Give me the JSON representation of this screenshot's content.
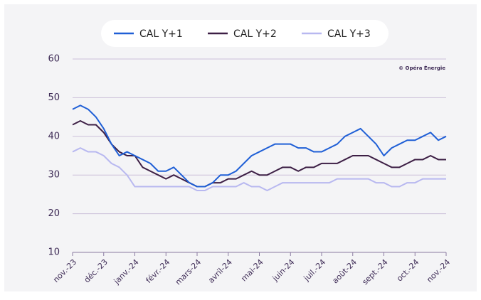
{
  "chart_data": {
    "type": "line",
    "annotation": "© Opéra Énergie",
    "x": [
      0,
      0.25,
      0.5,
      0.75,
      1,
      1.25,
      1.5,
      1.75,
      2,
      2.25,
      2.5,
      2.75,
      3,
      3.25,
      3.5,
      3.75,
      4,
      4.25,
      4.5,
      4.75,
      5,
      5.25,
      5.5,
      5.75,
      6,
      6.25,
      6.5,
      6.75,
      7,
      7.25,
      7.5,
      7.75,
      8,
      8.25,
      8.5,
      8.75,
      9,
      9.25,
      9.5,
      9.75,
      10,
      10.25,
      10.5,
      10.75,
      11,
      11.25,
      11.5,
      11.75,
      12
    ],
    "xlim": [
      0,
      12
    ],
    "xticks": [
      {
        "value": 0,
        "label": "nov.-23"
      },
      {
        "value": 1,
        "label": "déc.-23"
      },
      {
        "value": 2,
        "label": "janv.-24"
      },
      {
        "value": 3,
        "label": "févr.-24"
      },
      {
        "value": 4,
        "label": "mars-24"
      },
      {
        "value": 5,
        "label": "avril-24"
      },
      {
        "value": 6,
        "label": "mai-24"
      },
      {
        "value": 7,
        "label": "juin-24"
      },
      {
        "value": 8,
        "label": "juil.-24"
      },
      {
        "value": 9,
        "label": "août-24"
      },
      {
        "value": 10,
        "label": "sept.-24"
      },
      {
        "value": 11,
        "label": "oct.-24"
      },
      {
        "value": 12,
        "label": "nov.-24"
      }
    ],
    "ylim": [
      10,
      60
    ],
    "yticks": [
      10,
      20,
      30,
      40,
      50,
      60
    ],
    "grid": true,
    "series": [
      {
        "name": "CAL Y+1",
        "color": "#1f5fd6",
        "values": [
          47,
          48,
          47,
          45,
          42,
          38,
          35,
          36,
          35,
          34,
          33,
          31,
          31,
          32,
          30,
          28,
          27,
          27,
          28,
          30,
          30,
          31,
          33,
          35,
          36,
          37,
          38,
          38,
          38,
          37,
          37,
          36,
          36,
          37,
          38,
          40,
          41,
          42,
          40,
          38,
          35,
          37,
          38,
          39,
          39,
          40,
          41,
          39,
          40
        ]
      },
      {
        "name": "CAL Y+2",
        "color": "#3d1f45",
        "values": [
          43,
          44,
          43,
          43,
          41,
          38,
          36,
          35,
          35,
          32,
          31,
          30,
          29,
          30,
          29,
          28,
          27,
          27,
          28,
          28,
          29,
          29,
          30,
          31,
          30,
          30,
          31,
          32,
          32,
          31,
          32,
          32,
          33,
          33,
          33,
          34,
          35,
          35,
          35,
          34,
          33,
          32,
          32,
          33,
          34,
          34,
          35,
          34,
          34
        ]
      },
      {
        "name": "CAL Y+3",
        "color": "#b8b8f0",
        "values": [
          36,
          37,
          36,
          36,
          35,
          33,
          32,
          30,
          27,
          27,
          27,
          27,
          27,
          27,
          27,
          27,
          26,
          26,
          27,
          27,
          27,
          27,
          28,
          27,
          27,
          26,
          27,
          28,
          28,
          28,
          28,
          28,
          28,
          28,
          29,
          29,
          29,
          29,
          29,
          28,
          28,
          27,
          27,
          28,
          28,
          29,
          29,
          29,
          29
        ]
      }
    ]
  }
}
